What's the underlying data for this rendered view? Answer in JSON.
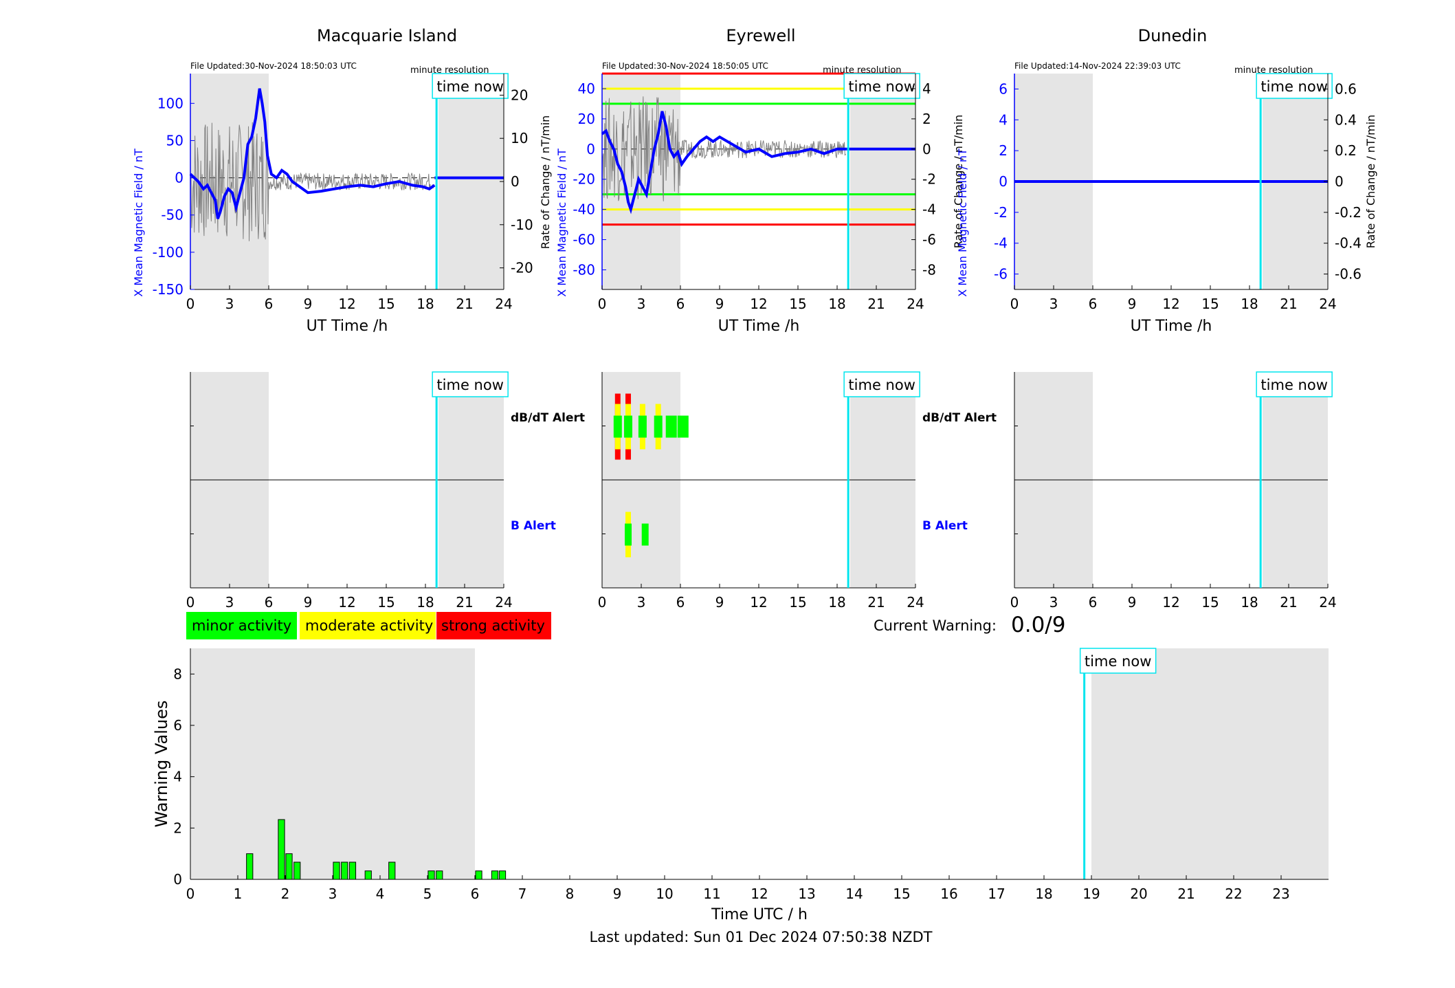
{
  "panels": [
    {
      "id": "macquarie",
      "title": "Macquarie Island",
      "file_updated": "File Updated:30-Nov-2024 18:50:03 UTC",
      "resolution": "minute resolution",
      "ylabel_left": "X Mean Magnetic Field / nT",
      "ylabel_right": "",
      "xlabel": "UT Time /h",
      "left_ticks": [
        "-150",
        "-100",
        "-50",
        "0",
        "50",
        "100"
      ],
      "right_ticks": [
        "-20",
        "-10",
        "0",
        "10",
        "20"
      ]
    },
    {
      "id": "eyrewell",
      "title": "Eyrewell",
      "file_updated": "File Updated:30-Nov-2024 18:50:05 UTC",
      "resolution": "minute resolution",
      "ylabel_left": "X Mean Magnetic Field / nT",
      "ylabel_right": "Rate of Change / nT/min",
      "xlabel": "UT Time /h",
      "left_ticks": [
        "-80",
        "-60",
        "-40",
        "-20",
        "0",
        "20",
        "40"
      ],
      "right_ticks": [
        "-8",
        "-6",
        "-4",
        "-2",
        "0",
        "2",
        "4"
      ]
    },
    {
      "id": "dunedin",
      "title": "Dunedin",
      "file_updated": "File Updated:14-Nov-2024 22:39:03 UTC",
      "resolution": "minute resolution",
      "ylabel_left": "X Mean Magnetic Field / nT",
      "ylabel_right": "Rate of Change / nT/min",
      "xlabel": "UT Time /h",
      "left_ticks": [
        "-6",
        "-4",
        "-2",
        "0",
        "2",
        "4",
        "6"
      ],
      "right_ticks": [
        "-0.6",
        "-0.4",
        "-0.2",
        "0",
        "0.2",
        "0.4",
        "0.6"
      ]
    }
  ],
  "ylabel_right_first": "Rate of Change / nT/min",
  "x_ticks": [
    "0",
    "3",
    "6",
    "9",
    "12",
    "15",
    "18",
    "21",
    "24"
  ],
  "time_now_label": "time now",
  "alerts": {
    "dbdt_label": "dB/dT Alert",
    "b_label": "B Alert"
  },
  "legend": {
    "minor": "minor activity",
    "moderate": "moderate activity",
    "strong": "strong activity"
  },
  "current_warning_label": "Current Warning:",
  "current_warning_value": "0.0/9",
  "warning_chart": {
    "ylabel": "Warning Values",
    "xlabel": "Time UTC / h",
    "y_ticks": [
      "0",
      "2",
      "4",
      "6",
      "8"
    ],
    "x_ticks": [
      "0",
      "1",
      "2",
      "3",
      "4",
      "5",
      "6",
      "7",
      "8",
      "9",
      "10",
      "11",
      "12",
      "13",
      "14",
      "15",
      "16",
      "17",
      "18",
      "19",
      "20",
      "21",
      "22",
      "23"
    ]
  },
  "last_updated": "Last updated: Sun 01 Dec 2024 07:50:38 NZDT",
  "colors": {
    "field": "#0000ff",
    "roc": "#808080",
    "time_now": "#00e5ee",
    "night_shade": "#e5e5e5",
    "minor": "#00ff00",
    "moderate": "#ffff00",
    "strong": "#ff0000"
  },
  "chart_data": [
    {
      "type": "line",
      "title": "Macquarie Island",
      "xlabel": "UT Time /h",
      "ylabel": "X Mean Magnetic Field / nT",
      "xlim": [
        0,
        24
      ],
      "ylim": [
        -150,
        140
      ],
      "y2label": "Rate of Change / nT/min",
      "y2lim": [
        -25,
        25
      ],
      "time_now": 18.85,
      "shaded": [
        [
          0,
          6
        ],
        [
          19,
          24
        ]
      ],
      "series": [
        {
          "role": "field",
          "x": [
            0,
            0.3,
            0.6,
            1,
            1.3,
            1.6,
            1.9,
            2.1,
            2.3,
            2.6,
            2.9,
            3.2,
            3.5,
            3.8,
            4.1,
            4.4,
            4.7,
            5.0,
            5.3,
            5.5,
            5.7,
            5.9,
            6.2,
            6.6,
            7.0,
            7.4,
            7.8,
            8.2,
            8.6,
            9,
            10,
            11,
            12,
            13,
            14,
            15,
            16,
            17,
            17.8,
            18.3,
            18.7
          ],
          "y": [
            5,
            0,
            -5,
            -15,
            -10,
            -20,
            -30,
            -55,
            -45,
            -25,
            -15,
            -20,
            -40,
            -20,
            0,
            45,
            55,
            80,
            120,
            100,
            75,
            30,
            5,
            0,
            10,
            5,
            -5,
            -10,
            -15,
            -20,
            -18,
            -15,
            -12,
            -10,
            -12,
            -8,
            -5,
            -10,
            -12,
            -15,
            -10
          ]
        },
        {
          "role": "field_flat",
          "x": [
            18.7,
            24
          ],
          "y": [
            0,
            0
          ]
        }
      ]
    },
    {
      "type": "line",
      "title": "Eyrewell",
      "xlabel": "UT Time /h",
      "ylabel": "X Mean Magnetic Field / nT",
      "xlim": [
        0,
        24
      ],
      "ylim": [
        -93,
        50
      ],
      "y2label": "Rate of Change / nT/min",
      "y2lim": [
        -9.3,
        5
      ],
      "thresholds": {
        "minor": [
          30,
          -30
        ],
        "moderate": [
          40,
          -40
        ],
        "strong": [
          50,
          -50
        ]
      },
      "time_now": 18.85,
      "shaded": [
        [
          0,
          6
        ],
        [
          19,
          24
        ]
      ],
      "series": [
        {
          "role": "field",
          "x": [
            0,
            0.3,
            0.6,
            0.9,
            1.2,
            1.5,
            1.8,
            2.0,
            2.2,
            2.5,
            2.8,
            3.1,
            3.4,
            3.7,
            4.0,
            4.3,
            4.6,
            4.9,
            5.2,
            5.5,
            5.8,
            6.1,
            6.5,
            7,
            7.5,
            8,
            8.5,
            9,
            10,
            11,
            12,
            13,
            14,
            15,
            16,
            17,
            18,
            18.7
          ],
          "y": [
            10,
            12,
            5,
            0,
            -10,
            -15,
            -25,
            -35,
            -40,
            -30,
            -20,
            -25,
            -30,
            -15,
            0,
            10,
            25,
            15,
            0,
            -5,
            -2,
            -10,
            -5,
            0,
            5,
            8,
            5,
            8,
            3,
            -2,
            0,
            -5,
            -3,
            -2,
            0,
            -3,
            0,
            0
          ]
        },
        {
          "role": "field_flat",
          "x": [
            18.7,
            24
          ],
          "y": [
            0,
            0
          ]
        }
      ]
    },
    {
      "type": "line",
      "title": "Dunedin",
      "xlabel": "UT Time /h",
      "ylabel": "X Mean Magnetic Field / nT",
      "xlim": [
        0,
        24
      ],
      "ylim": [
        -7,
        7
      ],
      "y2label": "Rate of Change / nT/min",
      "y2lim": [
        -0.7,
        0.7
      ],
      "time_now": 18.85,
      "shaded": [
        [
          0,
          6
        ],
        [
          19,
          24
        ]
      ],
      "series": [
        {
          "role": "field",
          "x": [
            0,
            24
          ],
          "y": [
            0,
            0
          ]
        }
      ]
    },
    {
      "type": "bar",
      "title": "",
      "xlabel": "Time UTC / h",
      "ylabel": "Warning Values",
      "xlim": [
        0,
        24
      ],
      "ylim": [
        0,
        9
      ],
      "time_now": 18.85,
      "shaded": [
        [
          0,
          6
        ],
        [
          19,
          24
        ]
      ],
      "x": [
        1.25,
        1.92,
        2.08,
        2.25,
        3.08,
        3.25,
        3.42,
        3.75,
        4.25,
        5.08,
        5.25,
        6.08,
        6.42,
        6.58
      ],
      "values": [
        1.0,
        2.33,
        1.0,
        0.67,
        0.67,
        0.67,
        0.67,
        0.33,
        0.67,
        0.33,
        0.33,
        0.33,
        0.33,
        0.33
      ]
    }
  ]
}
